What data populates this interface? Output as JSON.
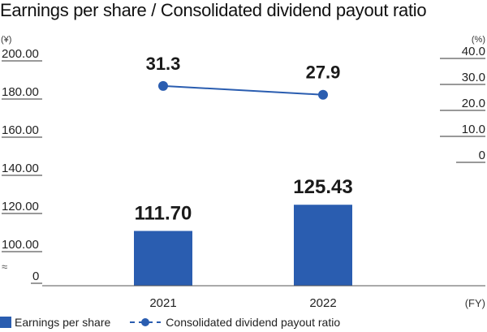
{
  "title": "Earnings per share / Consolidated dividend payout ratio",
  "chart_data": {
    "type": "bar",
    "categories": [
      "2021",
      "2022"
    ],
    "x_unit": "(FY)",
    "left_axis": {
      "unit": "(¥)",
      "ticks": [
        "200.00",
        "180.00",
        "160.00",
        "140.00",
        "120.00",
        "100.00",
        "0"
      ],
      "break_mark": "≈"
    },
    "right_axis": {
      "unit": "(%)",
      "ticks": [
        "40.0",
        "30.0",
        "20.0",
        "10.0",
        "0"
      ]
    },
    "series": [
      {
        "name": "Earnings per share",
        "kind": "bar",
        "values": [
          111.7,
          125.43
        ],
        "labels": [
          "111.70",
          "125.43"
        ],
        "color": "#2a5db0"
      },
      {
        "name": "Consolidated dividend payout ratio",
        "kind": "line",
        "values": [
          31.3,
          27.9
        ],
        "labels": [
          "31.3",
          "27.9"
        ],
        "color": "#2a5db0"
      }
    ]
  },
  "legend": {
    "bar_label": "Earnings per share",
    "line_label": "Consolidated dividend payout ratio"
  }
}
